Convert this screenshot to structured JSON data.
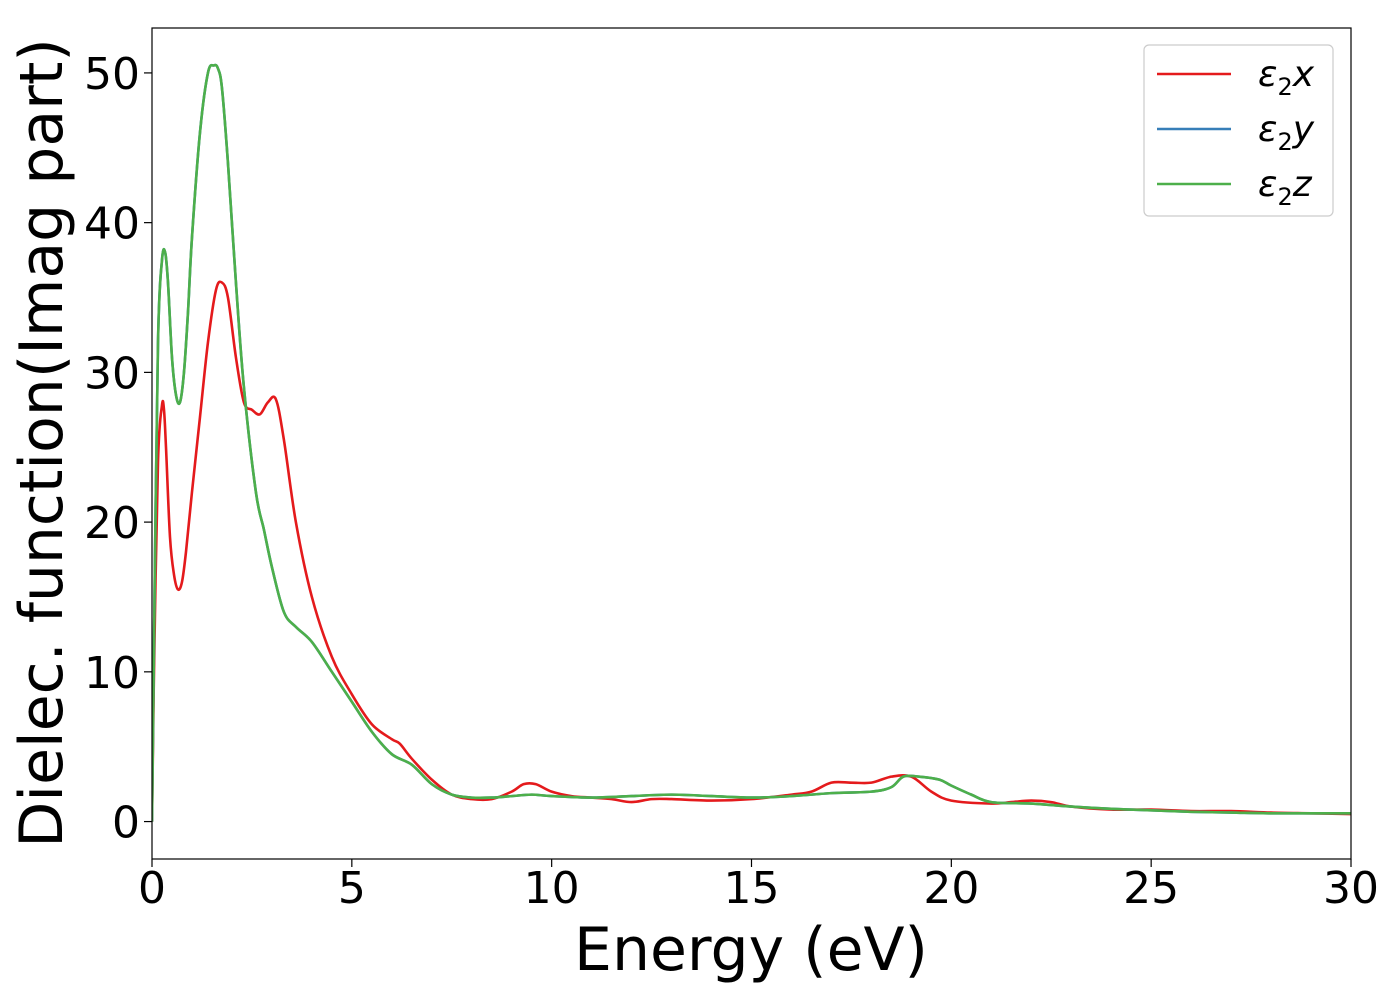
{
  "chart_data": {
    "type": "line",
    "title": "",
    "xlabel": "Energy (eV)",
    "ylabel": "Dielec. function(Imag part)",
    "xlim": [
      0,
      30
    ],
    "ylim": [
      -2.5,
      53
    ],
    "xticks": [
      0,
      5,
      10,
      15,
      20,
      25,
      30
    ],
    "xtick_labels": [
      "0",
      "5",
      "10",
      "15",
      "20",
      "25",
      "30"
    ],
    "yticks": [
      0,
      10,
      20,
      30,
      40,
      50
    ],
    "ytick_labels": [
      "0",
      "10",
      "20",
      "30",
      "40",
      "50"
    ],
    "grid": false,
    "legend_position": "top-right",
    "series": [
      {
        "name": "ε2x",
        "label_main": "ε",
        "label_sub": "2",
        "label_tail": "x",
        "color": "#e41a1c",
        "x": [
          0,
          0.05,
          0.15,
          0.25,
          0.3,
          0.35,
          0.45,
          0.55,
          0.65,
          0.75,
          0.85,
          1.0,
          1.2,
          1.4,
          1.6,
          1.75,
          1.9,
          2.1,
          2.3,
          2.5,
          2.7,
          2.9,
          3.1,
          3.3,
          3.6,
          4.0,
          4.5,
          5.0,
          5.5,
          6.0,
          6.2,
          6.5,
          7.0,
          7.5,
          8.0,
          8.5,
          9.0,
          9.3,
          9.6,
          10.0,
          10.5,
          11.0,
          11.5,
          12.0,
          12.5,
          13.0,
          14.0,
          15.0,
          16.0,
          16.5,
          17.0,
          17.5,
          18.0,
          18.5,
          19.0,
          19.5,
          20.0,
          21.0,
          21.5,
          22.0,
          22.5,
          23.0,
          24.0,
          25.0,
          26.0,
          27.0,
          28.0,
          29.0,
          30.0
        ],
        "values": [
          0,
          10,
          24,
          27.8,
          27.5,
          25,
          19,
          16.5,
          15.5,
          16,
          18,
          22,
          27,
          32,
          35.5,
          36,
          35,
          31,
          28,
          27.5,
          27.2,
          28,
          28.2,
          25.5,
          20,
          15,
          11,
          8.5,
          6.5,
          5.5,
          5.2,
          4.2,
          2.8,
          1.8,
          1.5,
          1.5,
          2.0,
          2.5,
          2.5,
          2.0,
          1.7,
          1.6,
          1.5,
          1.3,
          1.5,
          1.5,
          1.4,
          1.5,
          1.8,
          2.0,
          2.6,
          2.6,
          2.6,
          3.0,
          3.0,
          2.0,
          1.4,
          1.2,
          1.3,
          1.4,
          1.3,
          1.0,
          0.8,
          0.8,
          0.7,
          0.7,
          0.6,
          0.55,
          0.5
        ]
      },
      {
        "name": "ε2y",
        "label_main": "ε",
        "label_sub": "2",
        "label_tail": "y",
        "color": "#377eb8",
        "x": [
          0,
          0.05,
          0.15,
          0.25,
          0.33,
          0.4,
          0.5,
          0.6,
          0.7,
          0.8,
          0.9,
          1.0,
          1.2,
          1.4,
          1.55,
          1.65,
          1.75,
          1.9,
          2.1,
          2.3,
          2.6,
          2.8,
          3.0,
          3.3,
          3.6,
          4.0,
          4.5,
          5.0,
          5.5,
          6.0,
          6.5,
          7.0,
          7.5,
          8.0,
          8.5,
          9.0,
          9.5,
          10.0,
          11.0,
          12.0,
          13.0,
          14.0,
          15.0,
          16.0,
          17.0,
          18.0,
          18.5,
          18.8,
          19.2,
          19.7,
          20.0,
          20.5,
          21.0,
          22.0,
          23.0,
          24.0,
          25.0,
          26.0,
          27.0,
          28.0,
          29.0,
          30.0
        ],
        "values": [
          0,
          12,
          32,
          37.5,
          38,
          36,
          31,
          28.5,
          28,
          30,
          34,
          39,
          46,
          50,
          50.5,
          50.3,
          49,
          44,
          36,
          29,
          22,
          19.5,
          17,
          14,
          13,
          12,
          10,
          8,
          6,
          4.5,
          3.8,
          2.5,
          1.8,
          1.6,
          1.6,
          1.7,
          1.8,
          1.7,
          1.6,
          1.7,
          1.8,
          1.7,
          1.6,
          1.7,
          1.9,
          2.0,
          2.3,
          3.0,
          3.0,
          2.8,
          2.4,
          1.8,
          1.3,
          1.2,
          1.0,
          0.85,
          0.75,
          0.65,
          0.6,
          0.55,
          0.55,
          0.55
        ]
      },
      {
        "name": "ε2z",
        "label_main": "ε",
        "label_sub": "2",
        "label_tail": "z",
        "color": "#4daf4a",
        "x": [
          0,
          0.05,
          0.15,
          0.25,
          0.33,
          0.4,
          0.5,
          0.6,
          0.7,
          0.8,
          0.9,
          1.0,
          1.2,
          1.4,
          1.55,
          1.65,
          1.75,
          1.9,
          2.1,
          2.3,
          2.6,
          2.8,
          3.0,
          3.3,
          3.6,
          4.0,
          4.5,
          5.0,
          5.5,
          6.0,
          6.5,
          7.0,
          7.5,
          8.0,
          8.5,
          9.0,
          9.5,
          10.0,
          11.0,
          12.0,
          13.0,
          14.0,
          15.0,
          16.0,
          17.0,
          18.0,
          18.5,
          18.8,
          19.2,
          19.7,
          20.0,
          20.5,
          21.0,
          22.0,
          23.0,
          24.0,
          25.0,
          26.0,
          27.0,
          28.0,
          29.0,
          30.0
        ],
        "values": [
          0,
          12,
          32,
          37.5,
          38,
          36,
          31,
          28.5,
          28,
          30,
          34,
          39,
          46,
          50,
          50.5,
          50.3,
          49,
          44,
          36,
          29,
          22,
          19.5,
          17,
          14,
          13,
          12,
          10,
          8,
          6,
          4.5,
          3.8,
          2.5,
          1.8,
          1.6,
          1.6,
          1.7,
          1.8,
          1.7,
          1.6,
          1.7,
          1.8,
          1.7,
          1.6,
          1.7,
          1.9,
          2.0,
          2.3,
          3.0,
          3.0,
          2.8,
          2.4,
          1.8,
          1.3,
          1.2,
          1.0,
          0.85,
          0.75,
          0.65,
          0.6,
          0.55,
          0.55,
          0.55
        ]
      }
    ]
  }
}
